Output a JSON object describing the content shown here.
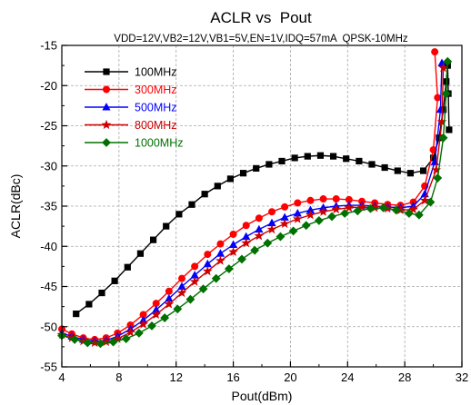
{
  "chart_data": {
    "type": "line",
    "title": "ACLR vs  Pout",
    "subtitle": "VDD=12V,VB2=12V,VB1=5V,EN=1V,IDQ=57mA  QPSK-10MHz",
    "xlabel": "Pout(dBm)",
    "ylabel": "ACLR(dBc)",
    "xlim": [
      4,
      32
    ],
    "ylim": [
      -55,
      -15
    ],
    "xticks": [
      "4",
      "8",
      "12",
      "16",
      "20",
      "24",
      "28",
      "32"
    ],
    "yticks": [
      "-15",
      "-20",
      "-25",
      "-30",
      "-35",
      "-40",
      "-45",
      "-50",
      "-55"
    ],
    "grid": true,
    "legend_position": "top-left",
    "series": [
      {
        "name": "100MHz",
        "color": "#000000",
        "marker": "square",
        "x": [
          5.0,
          5.9,
          6.8,
          7.7,
          8.6,
          9.5,
          10.4,
          11.3,
          12.2,
          13.1,
          14.0,
          14.9,
          15.8,
          16.7,
          17.6,
          18.5,
          19.4,
          20.3,
          21.2,
          22.1,
          23.0,
          23.9,
          24.8,
          25.7,
          26.6,
          27.5,
          28.4,
          29.3,
          30.0,
          30.4,
          30.7,
          30.9,
          31.0,
          31.05,
          31.1
        ],
        "y": [
          -48.4,
          -47.2,
          -45.8,
          -44.3,
          -42.6,
          -40.9,
          -39.2,
          -37.5,
          -36.0,
          -34.8,
          -33.5,
          -32.5,
          -31.6,
          -30.9,
          -30.3,
          -29.8,
          -29.4,
          -29.0,
          -28.8,
          -28.7,
          -28.8,
          -29.1,
          -29.4,
          -29.8,
          -30.2,
          -30.6,
          -30.9,
          -30.6,
          -29.0,
          -26.5,
          -23.0,
          -19.5,
          -17.5,
          -21.0,
          -25.5
        ]
      },
      {
        "name": "300MHz",
        "color": "#ff0000",
        "marker": "circle",
        "x": [
          4.0,
          4.7,
          5.5,
          6.3,
          7.1,
          7.9,
          8.8,
          9.7,
          10.6,
          11.5,
          12.4,
          13.3,
          14.2,
          15.1,
          16.0,
          16.9,
          17.8,
          18.7,
          19.6,
          20.5,
          21.4,
          22.3,
          23.2,
          24.1,
          25.0,
          25.9,
          26.8,
          27.7,
          28.6,
          29.4,
          30.0,
          30.3,
          30.1
        ],
        "y": [
          -50.3,
          -50.9,
          -51.4,
          -51.6,
          -51.4,
          -50.8,
          -49.8,
          -48.5,
          -47.1,
          -45.6,
          -44.0,
          -42.5,
          -41.0,
          -39.7,
          -38.5,
          -37.4,
          -36.5,
          -35.7,
          -35.1,
          -34.6,
          -34.3,
          -34.1,
          -34.1,
          -34.2,
          -34.4,
          -34.6,
          -34.8,
          -34.9,
          -34.5,
          -32.5,
          -28.0,
          -21.5,
          -15.8
        ]
      },
      {
        "name": "500MHz",
        "color": "#0000ff",
        "marker": "triangle",
        "x": [
          4.0,
          4.7,
          5.5,
          6.3,
          7.1,
          7.9,
          8.8,
          9.7,
          10.6,
          11.5,
          12.4,
          13.3,
          14.2,
          15.1,
          16.0,
          16.9,
          17.8,
          18.7,
          19.6,
          20.5,
          21.4,
          22.3,
          23.2,
          24.1,
          25.0,
          25.9,
          26.8,
          27.7,
          28.6,
          29.4,
          30.1,
          30.5,
          30.6
        ],
        "y": [
          -50.8,
          -51.2,
          -51.6,
          -51.8,
          -51.7,
          -51.2,
          -50.3,
          -49.2,
          -47.9,
          -46.5,
          -45.0,
          -43.6,
          -42.2,
          -40.9,
          -39.8,
          -38.8,
          -37.9,
          -37.1,
          -36.4,
          -35.9,
          -35.5,
          -35.2,
          -35.0,
          -34.9,
          -34.9,
          -35.0,
          -35.1,
          -35.2,
          -35.0,
          -33.5,
          -29.5,
          -23.0,
          -17.2
        ]
      },
      {
        "name": "800MHz",
        "color": "#cc0000",
        "marker": "star",
        "x": [
          4.0,
          4.7,
          5.5,
          6.3,
          7.1,
          7.9,
          8.8,
          9.7,
          10.6,
          11.5,
          12.4,
          13.3,
          14.2,
          15.1,
          16.0,
          16.9,
          17.8,
          18.7,
          19.6,
          20.5,
          21.4,
          22.3,
          23.2,
          24.1,
          25.0,
          25.9,
          26.8,
          27.7,
          28.6,
          29.4,
          30.2,
          30.6,
          30.7
        ],
        "y": [
          -51.0,
          -51.4,
          -51.8,
          -52.0,
          -51.9,
          -51.5,
          -50.7,
          -49.7,
          -48.5,
          -47.2,
          -45.8,
          -44.4,
          -43.1,
          -41.8,
          -40.7,
          -39.6,
          -38.7,
          -37.9,
          -37.2,
          -36.6,
          -36.1,
          -35.7,
          -35.4,
          -35.2,
          -35.1,
          -35.2,
          -35.3,
          -35.5,
          -35.4,
          -34.3,
          -30.5,
          -24.5,
          -17.8
        ]
      },
      {
        "name": "1000MHz",
        "color": "#007000",
        "marker": "diamond",
        "x": [
          4.0,
          4.9,
          5.8,
          6.7,
          7.6,
          8.5,
          9.4,
          10.3,
          11.2,
          12.1,
          13.0,
          13.9,
          14.8,
          15.7,
          16.6,
          17.5,
          18.4,
          19.3,
          20.2,
          21.1,
          22.0,
          22.9,
          23.8,
          24.7,
          25.6,
          26.5,
          27.4,
          28.3,
          29.0,
          29.8,
          30.3,
          30.7,
          30.9,
          31.0
        ],
        "y": [
          -51.1,
          -51.6,
          -52.0,
          -52.1,
          -51.9,
          -51.5,
          -50.8,
          -49.9,
          -48.9,
          -47.8,
          -46.6,
          -45.3,
          -44.0,
          -42.8,
          -41.6,
          -40.5,
          -39.6,
          -38.8,
          -38.1,
          -37.4,
          -36.8,
          -36.3,
          -35.9,
          -35.6,
          -35.3,
          -35.2,
          -35.5,
          -35.9,
          -36.1,
          -34.5,
          -31.5,
          -26.5,
          -21.0,
          -17.0
        ]
      }
    ]
  }
}
